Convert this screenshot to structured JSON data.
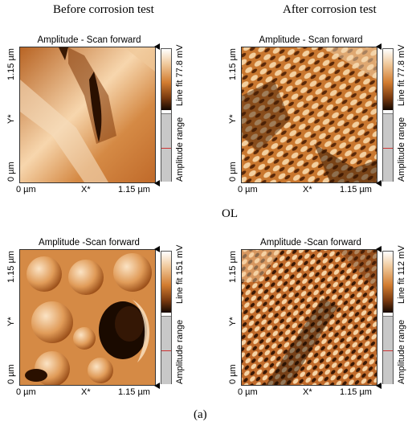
{
  "headers": {
    "before": "Before corrosion test",
    "after": "After corrosion test"
  },
  "row_label": "OL",
  "caption": "(a)",
  "axes": {
    "y_max": "1.15 µm",
    "y_min": "0 µm",
    "y_name": "Y*",
    "x_min": "0 µm",
    "x_name": "X*",
    "x_max": "1.15 µm"
  },
  "range_label": "Amplitude range",
  "panels": [
    {
      "title": "Amplitude - Scan forward",
      "line_fit": "Line fit 77.8 mV"
    },
    {
      "title": "Amplitude - Scan forward",
      "line_fit": "Line fit 77.8 mV"
    },
    {
      "title": "Amplitude -Scan forward",
      "line_fit": "Line fit 151 mV"
    },
    {
      "title": "Amplitude -Scan forward",
      "line_fit": "Line fit 112 mV"
    }
  ],
  "colors": {
    "surface_mid": "#d58a45",
    "surface_light": "#fbe3c4",
    "surface_dark": "#1a0a00"
  }
}
